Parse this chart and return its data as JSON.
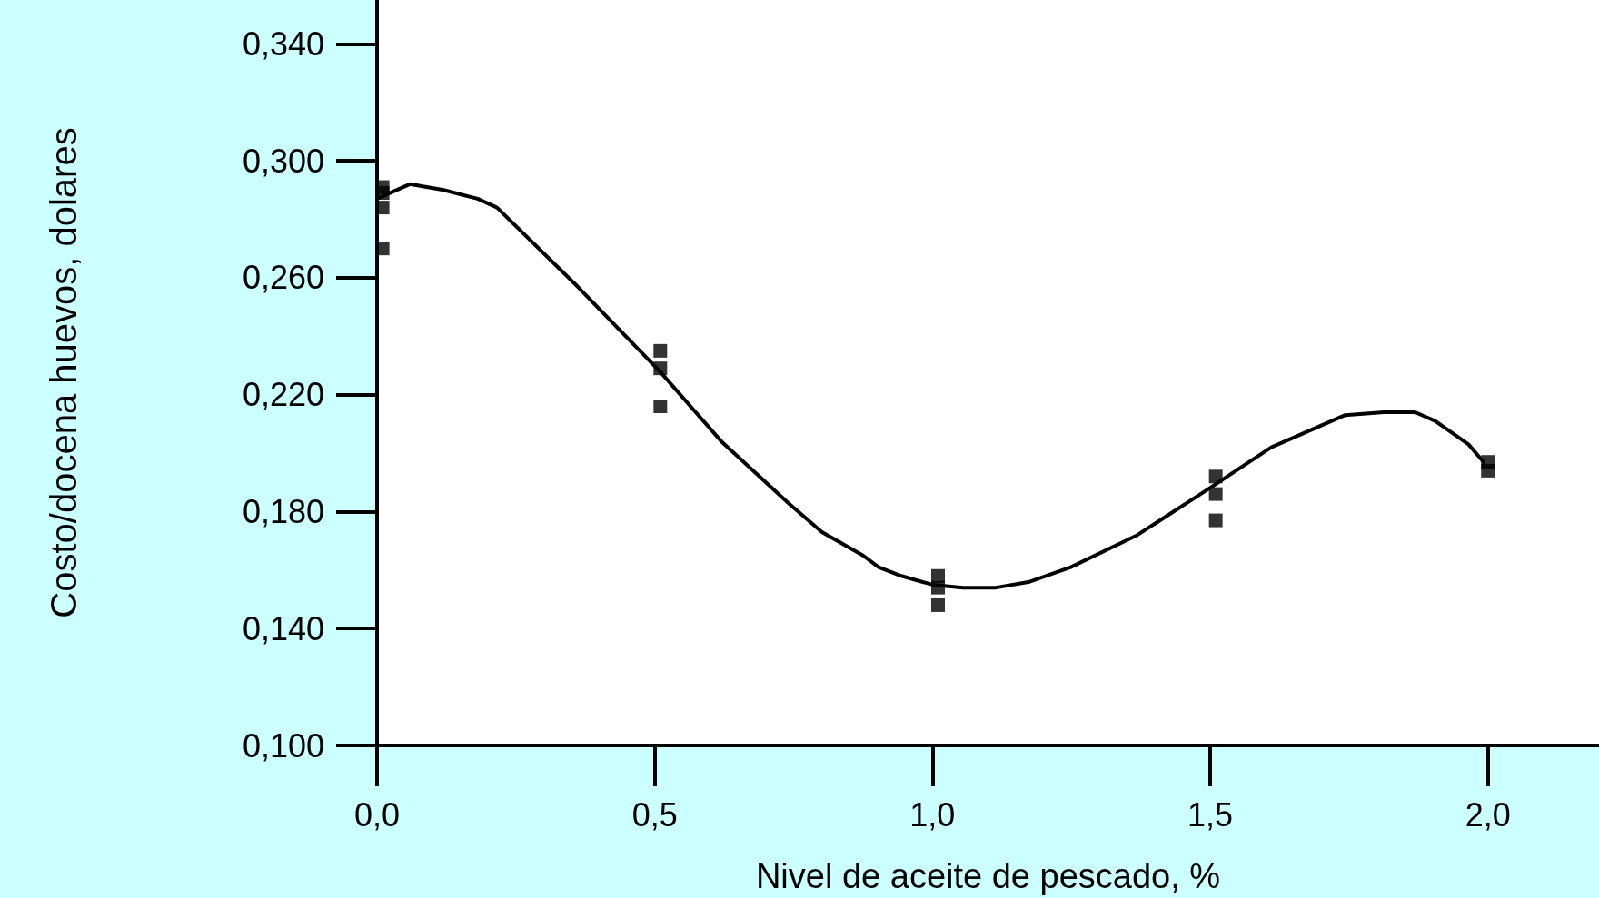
{
  "chart_data": {
    "type": "scatter",
    "xlabel": "Nivel de aceite de pescado, %",
    "ylabel": "Costo/docena huevos, dolares",
    "xlim": [
      0,
      2.2
    ],
    "ylim": [
      0.1,
      0.355
    ],
    "xticks": [
      {
        "value": 0,
        "label": "0,0"
      },
      {
        "value": 0.5,
        "label": "0,5"
      },
      {
        "value": 1,
        "label": "1,0"
      },
      {
        "value": 1.5,
        "label": "1,5"
      },
      {
        "value": 2,
        "label": "2,0"
      }
    ],
    "yticks": [
      {
        "value": 0.1,
        "label": "0,100"
      },
      {
        "value": 0.14,
        "label": "0,140"
      },
      {
        "value": 0.18,
        "label": "0,180"
      },
      {
        "value": 0.22,
        "label": "0,220"
      },
      {
        "value": 0.26,
        "label": "0,260"
      },
      {
        "value": 0.3,
        "label": "0,300"
      },
      {
        "value": 0.34,
        "label": "0,340"
      }
    ],
    "grid": false,
    "series": [
      {
        "marker": "square",
        "color": "#000000",
        "x": [
          0.01,
          0.01,
          0.01,
          0.01,
          0.51,
          0.51,
          0.51,
          1.01,
          1.01,
          1.01,
          1.51,
          1.51,
          1.51,
          2.0,
          2.0
        ],
        "values": [
          0.291,
          0.289,
          0.284,
          0.27,
          0.235,
          0.229,
          0.216,
          0.158,
          0.154,
          0.148,
          0.192,
          0.186,
          0.177,
          0.197,
          0.194
        ]
      },
      {
        "type": "line",
        "marker": "none",
        "line_style": "solid",
        "color": "#000000",
        "x": [
          0,
          0.059,
          0.12,
          0.181,
          0.216,
          0.361,
          0.509,
          0.62,
          0.74,
          0.801,
          0.875,
          0.903,
          0.944,
          1.0,
          1.055,
          1.114,
          1.175,
          1.249,
          1.369,
          1.499,
          1.61,
          1.743,
          1.813,
          1.869,
          1.905,
          1.965,
          1.992
        ],
        "values": [
          0.287,
          0.292,
          0.29,
          0.287,
          0.284,
          0.257,
          0.228,
          0.204,
          0.183,
          0.173,
          0.165,
          0.161,
          0.158,
          0.155,
          0.154,
          0.154,
          0.156,
          0.161,
          0.172,
          0.188,
          0.202,
          0.213,
          0.214,
          0.214,
          0.211,
          0.203,
          0.197
        ]
      }
    ]
  }
}
